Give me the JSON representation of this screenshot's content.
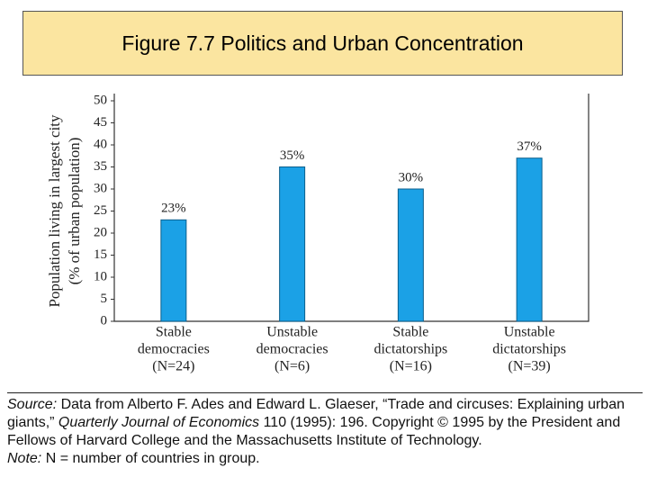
{
  "chart_data": {
    "type": "bar",
    "title": "Figure 7.7  Politics and Urban Concentration",
    "y_label": [
      "Population living in largest city",
      "(% of urban population)"
    ],
    "categories": [
      [
        "Stable",
        "democracies"
      ],
      [
        "Unstable",
        "democracies"
      ],
      [
        "Stable",
        "dictatorships"
      ],
      [
        "Unstable",
        "dictatorships"
      ]
    ],
    "group_sizes": [
      "(N=24)",
      "(N=6)",
      "(N=16)",
      "(N=39)"
    ],
    "values": [
      23,
      35,
      30,
      37
    ],
    "value_labels": [
      "23%",
      "35%",
      "30%",
      "37%"
    ],
    "color": "#1ba1e6",
    "ylim": [
      0,
      50
    ],
    "yticks": [
      0,
      5,
      10,
      15,
      20,
      25,
      30,
      35,
      40,
      45,
      50
    ]
  },
  "source": {
    "label": "Source:",
    "text_before": "Data from Alberto F. Ades and Edward L. Glaeser, “Trade and circuses: Explaining urban giants,”",
    "journal": "Quarterly Journal of Economics",
    "text_after": "110 (1995): 196. Copyright © 1995 by the President and Fellows of Harvard College and the Massachusetts Institute of Technology."
  },
  "note": {
    "label": "Note:",
    "text": "N = number of countries in group."
  }
}
